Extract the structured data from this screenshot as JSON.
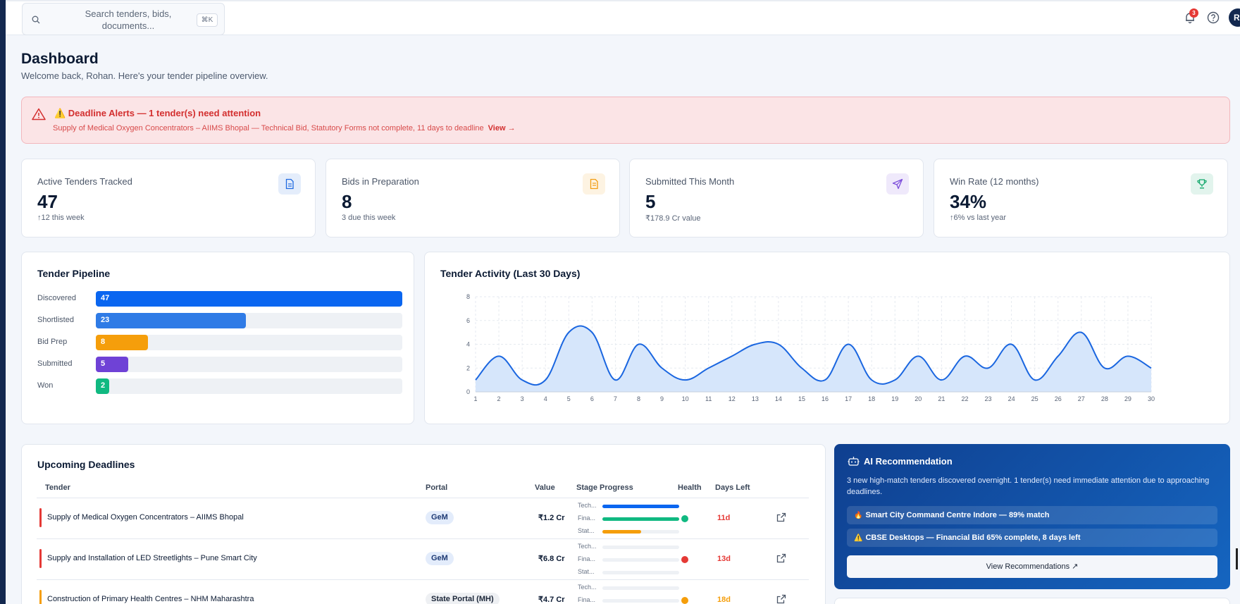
{
  "search": {
    "placeholder": "Search tenders, bids, documents...",
    "shortcut": "⌘K"
  },
  "topbar": {
    "notification_count": "3",
    "avatar_initial": "R"
  },
  "page": {
    "title": "Dashboard",
    "subtitle": "Welcome back, Rohan. Here's your tender pipeline overview."
  },
  "alert": {
    "title": "⚠️ Deadline Alerts — 1 tender(s) need attention",
    "message": "Supply of Medical Oxygen Concentrators – AIIMS Bhopal — Technical Bid, Statutory Forms not complete, 11 days to deadline",
    "link": "View →"
  },
  "kpis": [
    {
      "label": "Active Tenders Tracked",
      "value": "47",
      "sub": "↑12 this week",
      "icon": "document-icon",
      "color": "#1f6ae0"
    },
    {
      "label": "Bids in Preparation",
      "value": "8",
      "sub": "3 due this week",
      "icon": "file-text-icon",
      "color": "#f29d12"
    },
    {
      "label": "Submitted This Month",
      "value": "5",
      "sub": "₹178.9 Cr value",
      "icon": "send-icon",
      "color": "#7c4ddb"
    },
    {
      "label": "Win Rate (12 months)",
      "value": "34%",
      "sub": "↑6% vs last year",
      "icon": "trophy-icon",
      "color": "#12a86b"
    }
  ],
  "pipeline": {
    "title": "Tender Pipeline",
    "max": 47,
    "stages": [
      {
        "label": "Discovered",
        "value": 47,
        "color": "#0a66f0"
      },
      {
        "label": "Shortlisted",
        "value": 23,
        "color": "#2f7be6"
      },
      {
        "label": "Bid Prep",
        "value": 8,
        "color": "#f59e0b"
      },
      {
        "label": "Submitted",
        "value": 5,
        "color": "#6f42d6"
      },
      {
        "label": "Won",
        "value": 2,
        "color": "#10b981"
      }
    ]
  },
  "chart_data": {
    "type": "area",
    "title": "Tender Activity (Last 30 Days)",
    "xlabel": "",
    "ylabel": "",
    "x": [
      1,
      2,
      3,
      4,
      5,
      6,
      7,
      8,
      9,
      10,
      11,
      12,
      13,
      14,
      15,
      16,
      17,
      18,
      19,
      20,
      21,
      22,
      23,
      24,
      25,
      26,
      27,
      28,
      29,
      30
    ],
    "values": [
      1,
      3,
      1,
      1,
      5,
      5,
      1,
      4,
      2,
      1,
      2,
      3,
      4,
      4,
      2,
      1,
      4,
      1,
      1,
      3,
      1,
      3,
      2,
      4,
      1,
      3,
      5,
      2,
      3,
      2
    ],
    "ylim": [
      0,
      8
    ],
    "yticks": [
      0,
      2,
      4,
      6,
      8
    ],
    "grid": true,
    "line_color": "#1a66e0",
    "fill_color": "#d6e6fb"
  },
  "deadlines": {
    "title": "Upcoming Deadlines",
    "headers": {
      "tender": "Tender",
      "portal": "Portal",
      "value": "Value",
      "stage": "Stage Progress",
      "health": "Health",
      "days": "Days Left"
    },
    "stage_labels": [
      "Tech...",
      "Fina...",
      "Stat..."
    ],
    "rows": [
      {
        "name": "Supply of Medical Oxygen Concentrators – AIIMS Bhopal",
        "portal": "GeM",
        "value": "₹1.2 Cr",
        "stages": [
          1.0,
          1.0,
          0.5
        ],
        "stage_colors": [
          "#0a66f0",
          "#10b981",
          "#f59e0b"
        ],
        "health_color": "#10b981",
        "days": "11d",
        "days_color": "#e53935",
        "accent": "#e53935"
      },
      {
        "name": "Supply and Installation of LED Streetlights – Pune Smart City",
        "portal": "GeM",
        "value": "₹6.8 Cr",
        "stages": [
          0,
          0,
          0
        ],
        "stage_colors": [
          "#0a66f0",
          "#10b981",
          "#f59e0b"
        ],
        "health_color": "#e53935",
        "days": "13d",
        "days_color": "#e53935",
        "accent": "#e53935"
      },
      {
        "name": "Construction of Primary Health Centres – NHM Maharashtra",
        "portal": "State Portal (MH)",
        "value": "₹4.7 Cr",
        "stages": [
          0,
          0,
          0
        ],
        "stage_colors": [
          "#0a66f0",
          "#10b981",
          "#f59e0b"
        ],
        "health_color": "#f59e0b",
        "days": "18d",
        "days_color": "#f59e0b",
        "accent": "#f59e0b"
      }
    ]
  },
  "ai": {
    "title": "AI Recommendation",
    "description": "3 new high-match tenders discovered overnight. 1 tender(s) need immediate attention due to approaching deadlines.",
    "items": [
      {
        "icon": "🔥",
        "text": "Smart City Command Centre Indore — 89% match"
      },
      {
        "icon": "⚠️",
        "text": "CBSE Desktops — Financial Bid 65% complete, 8 days left"
      }
    ],
    "button": "View Recommendations ↗"
  }
}
